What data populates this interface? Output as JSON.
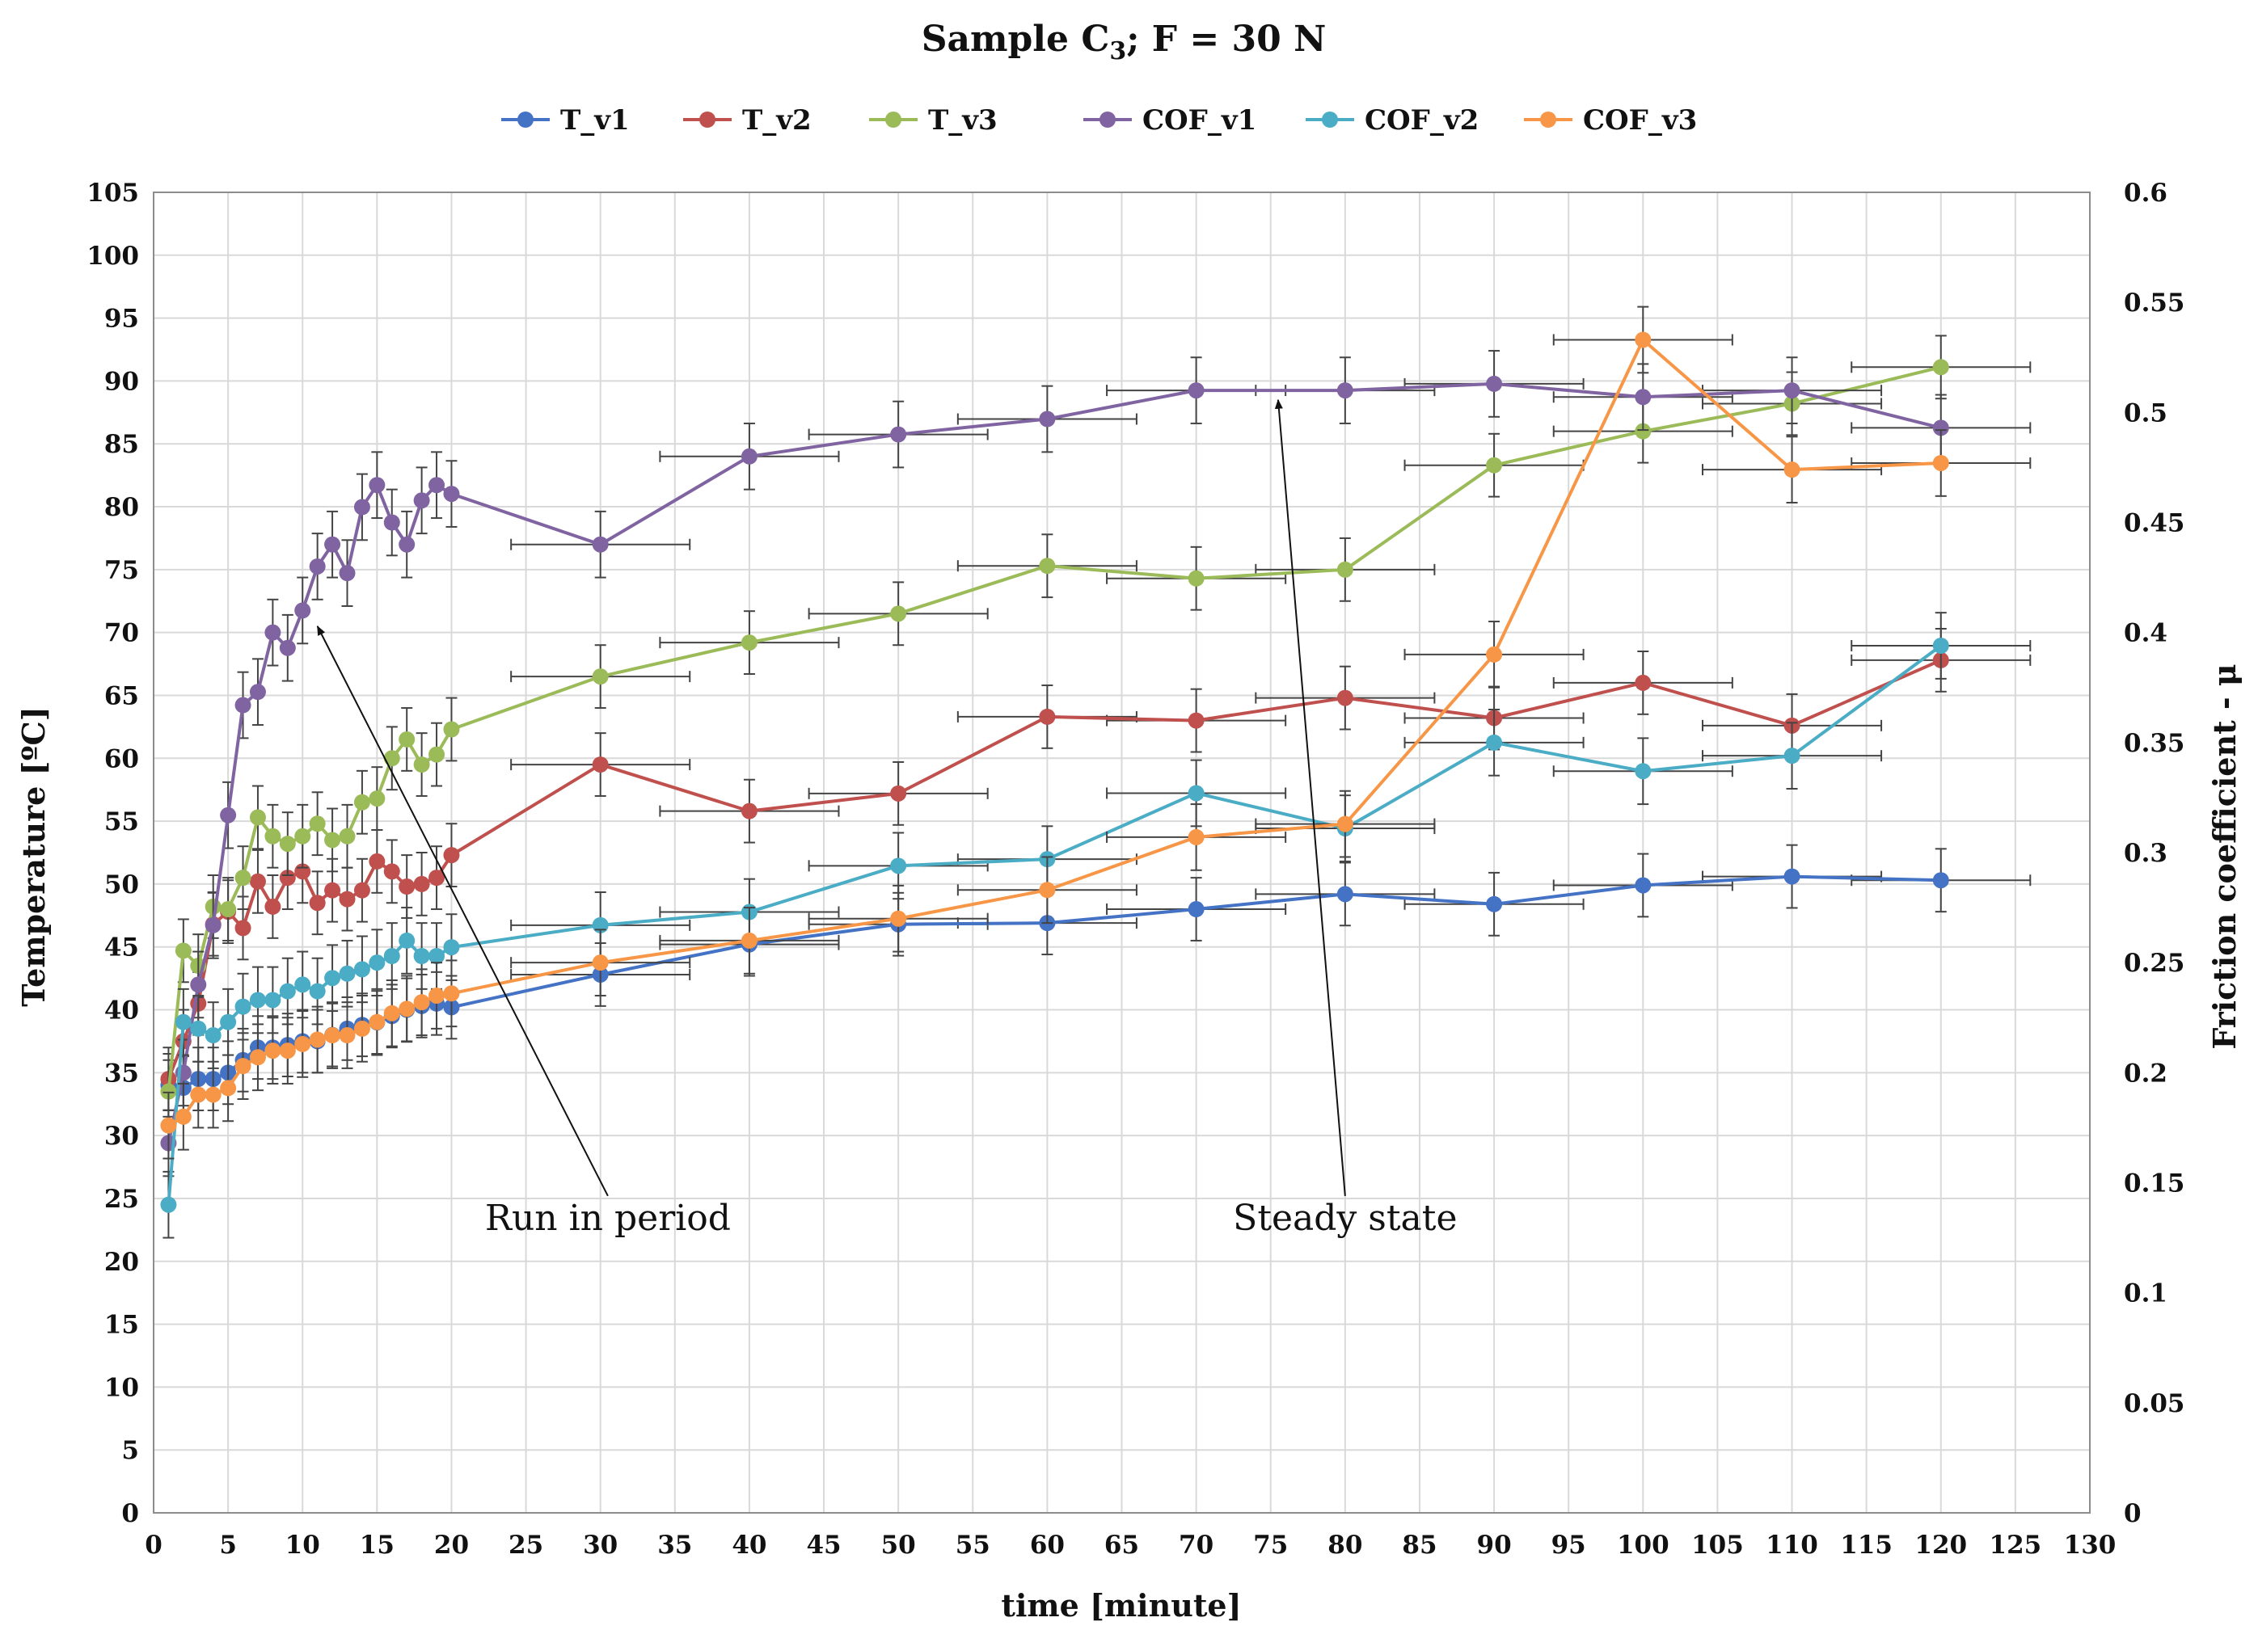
{
  "chart_data": {
    "type": "line",
    "title": "Sample C",
    "title_subscript": "3",
    "title_suffix": ";  F = 30 N",
    "xlabel": "time [minute]",
    "ylabel": "Temperature [ºC]",
    "y2label": "Friction coefficient - μ",
    "xlim": [
      0,
      130
    ],
    "ylim": [
      0,
      105
    ],
    "y2lim": [
      0,
      0.6
    ],
    "x_ticks": [
      0,
      5,
      10,
      15,
      20,
      25,
      30,
      35,
      40,
      45,
      50,
      55,
      60,
      65,
      70,
      75,
      80,
      85,
      90,
      95,
      100,
      105,
      110,
      115,
      120,
      125,
      130
    ],
    "y_ticks": [
      0,
      5,
      10,
      15,
      20,
      25,
      30,
      35,
      40,
      45,
      50,
      55,
      60,
      65,
      70,
      75,
      80,
      85,
      90,
      95,
      100,
      105
    ],
    "y2_ticks": [
      "0",
      "0.05",
      "0.1",
      "0.15",
      "0.2",
      "0.25",
      "0.3",
      "0.35",
      "0.4",
      "0.45",
      "0.5",
      "0.55",
      "0.6"
    ],
    "grid": true,
    "legend_position": "top",
    "series": [
      {
        "name": "T_v1",
        "color": "#4472C4",
        "axis": "left",
        "x": [
          1,
          2,
          3,
          4,
          5,
          6,
          7,
          8,
          9,
          10,
          11,
          12,
          13,
          14,
          15,
          16,
          17,
          18,
          19,
          20,
          30,
          40,
          50,
          60,
          70,
          80,
          90,
          100,
          110,
          120
        ],
        "y": [
          34.0,
          33.8,
          34.5,
          34.5,
          35,
          36,
          37,
          37,
          37.2,
          37.5,
          37.5,
          38,
          38.5,
          38.8,
          39,
          39.5,
          40,
          40.3,
          40.5,
          40.2,
          42.8,
          45.2,
          46.8,
          46.9,
          48.0,
          49.2,
          48.4,
          49.9,
          50.6,
          50.3
        ]
      },
      {
        "name": "T_v2",
        "color": "#C0504D",
        "axis": "left",
        "x": [
          1,
          2,
          3,
          4,
          5,
          6,
          7,
          8,
          9,
          10,
          11,
          12,
          13,
          14,
          15,
          16,
          17,
          18,
          19,
          20,
          30,
          40,
          50,
          60,
          70,
          80,
          90,
          100,
          110,
          120
        ],
        "y": [
          34.5,
          37.5,
          40.5,
          46.8,
          47.8,
          46.5,
          50.2,
          48.2,
          50.5,
          51.0,
          48.5,
          49.5,
          48.8,
          49.5,
          51.8,
          51.0,
          49.8,
          50.0,
          50.5,
          52.3,
          59.5,
          55.8,
          57.2,
          63.3,
          63.0,
          64.8,
          63.2,
          66.0,
          62.6,
          67.8
        ]
      },
      {
        "name": "T_v3",
        "color": "#9BBB59",
        "axis": "left",
        "x": [
          1,
          2,
          3,
          4,
          5,
          6,
          7,
          8,
          9,
          10,
          11,
          12,
          13,
          14,
          15,
          16,
          17,
          18,
          19,
          20,
          30,
          40,
          50,
          60,
          70,
          80,
          90,
          100,
          110,
          120
        ],
        "y": [
          33.5,
          44.7,
          43.5,
          48.2,
          48.0,
          50.5,
          55.3,
          53.8,
          53.2,
          53.8,
          54.8,
          53.5,
          53.8,
          56.5,
          56.8,
          60.0,
          61.5,
          59.5,
          60.3,
          62.3,
          66.5,
          69.2,
          71.5,
          75.3,
          74.3,
          75.0,
          83.3,
          86.0,
          88.2,
          91.1
        ]
      },
      {
        "name": "COF_v1",
        "color": "#8064A2",
        "axis": "right",
        "x": [
          1,
          2,
          3,
          4,
          5,
          6,
          7,
          8,
          9,
          10,
          11,
          12,
          13,
          14,
          15,
          16,
          17,
          18,
          19,
          20,
          30,
          40,
          50,
          60,
          70,
          80,
          90,
          100,
          110,
          120
        ],
        "y": [
          0.168,
          0.2,
          0.24,
          0.267,
          0.317,
          0.367,
          0.373,
          0.4,
          0.393,
          0.41,
          0.43,
          0.44,
          0.427,
          0.457,
          0.467,
          0.45,
          0.44,
          0.46,
          0.467,
          0.463,
          0.44,
          0.48,
          0.49,
          0.497,
          0.51,
          0.51,
          0.513,
          0.507,
          0.51,
          0.493
        ]
      },
      {
        "name": "COF_v2",
        "color": "#4BACC6",
        "axis": "right",
        "x": [
          1,
          2,
          3,
          4,
          5,
          6,
          7,
          8,
          9,
          10,
          11,
          12,
          13,
          14,
          15,
          16,
          17,
          18,
          19,
          20,
          30,
          40,
          50,
          60,
          70,
          80,
          90,
          100,
          110,
          120
        ],
        "y": [
          0.14,
          0.223,
          0.22,
          0.217,
          0.223,
          0.23,
          0.233,
          0.233,
          0.237,
          0.24,
          0.237,
          0.243,
          0.245,
          0.247,
          0.25,
          0.253,
          0.26,
          0.253,
          0.253,
          0.257,
          0.267,
          0.273,
          0.294,
          0.297,
          0.327,
          0.311,
          0.35,
          0.337,
          0.344,
          0.394
        ]
      },
      {
        "name": "COF_v3",
        "color": "#F79646",
        "axis": "right",
        "x": [
          1,
          2,
          3,
          4,
          5,
          6,
          7,
          8,
          9,
          10,
          11,
          12,
          13,
          14,
          15,
          16,
          17,
          18,
          19,
          20,
          30,
          40,
          50,
          60,
          70,
          80,
          90,
          100,
          110,
          120
        ],
        "y": [
          0.176,
          0.18,
          0.19,
          0.19,
          0.193,
          0.203,
          0.207,
          0.21,
          0.21,
          0.213,
          0.215,
          0.217,
          0.217,
          0.22,
          0.223,
          0.227,
          0.229,
          0.232,
          0.235,
          0.236,
          0.25,
          0.26,
          0.27,
          0.283,
          0.307,
          0.313,
          0.39,
          0.533,
          0.474,
          0.477
        ]
      }
    ],
    "annotations": [
      {
        "text": "Run in period",
        "text_at": [
          30.5,
          22.5
        ],
        "arrow_to": [
          11,
          70.5
        ]
      },
      {
        "text": "Steady state",
        "text_at": [
          80,
          22.5
        ],
        "arrow_to": [
          75.5,
          88.5
        ]
      }
    ]
  }
}
